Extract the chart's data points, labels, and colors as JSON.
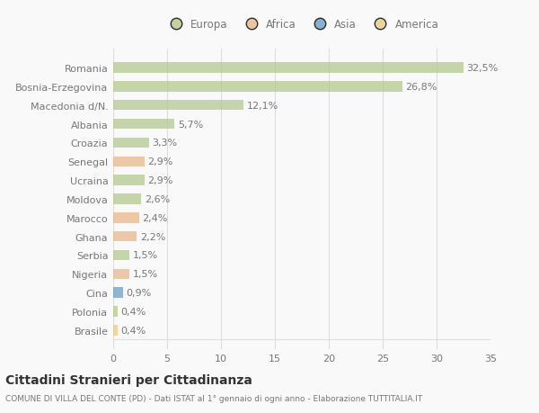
{
  "countries": [
    "Romania",
    "Bosnia-Erzegovina",
    "Macedonia d/N.",
    "Albania",
    "Croazia",
    "Senegal",
    "Ucraina",
    "Moldova",
    "Marocco",
    "Ghana",
    "Serbia",
    "Nigeria",
    "Cina",
    "Polonia",
    "Brasile"
  ],
  "values": [
    32.5,
    26.8,
    12.1,
    5.7,
    3.3,
    2.9,
    2.9,
    2.6,
    2.4,
    2.2,
    1.5,
    1.5,
    0.9,
    0.4,
    0.4
  ],
  "labels": [
    "32,5%",
    "26,8%",
    "12,1%",
    "5,7%",
    "3,3%",
    "2,9%",
    "2,9%",
    "2,6%",
    "2,4%",
    "2,2%",
    "1,5%",
    "1,5%",
    "0,9%",
    "0,4%",
    "0,4%"
  ],
  "continents": [
    "Europa",
    "Europa",
    "Europa",
    "Europa",
    "Europa",
    "Africa",
    "Europa",
    "Europa",
    "Africa",
    "Africa",
    "Europa",
    "Africa",
    "Asia",
    "Europa",
    "America"
  ],
  "continent_colors": {
    "Europa": "#b5c98e",
    "Africa": "#e8b88a",
    "Asia": "#6b9ec8",
    "America": "#e8cc85"
  },
  "xlim": [
    0,
    35
  ],
  "xticks": [
    0,
    5,
    10,
    15,
    20,
    25,
    30,
    35
  ],
  "title": "Cittadini Stranieri per Cittadinanza",
  "subtitle": "COMUNE DI VILLA DEL CONTE (PD) - Dati ISTAT al 1° gennaio di ogni anno - Elaborazione TUTTITALIA.IT",
  "background_color": "#f9f9f9",
  "bar_height": 0.55,
  "grid_color": "#dddddd",
  "text_color": "#777777",
  "label_fontsize": 8,
  "tick_fontsize": 8,
  "title_fontsize": 10,
  "subtitle_fontsize": 6.5,
  "legend_labels": [
    "Europa",
    "Africa",
    "Asia",
    "America"
  ]
}
